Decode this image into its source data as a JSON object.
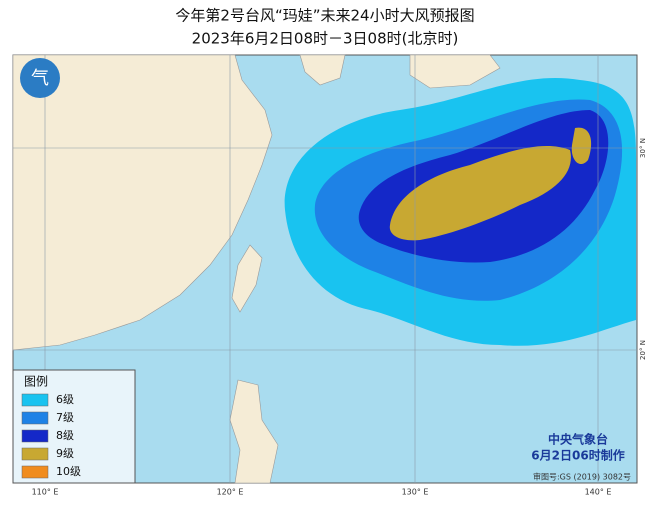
{
  "header": {
    "title": "今年第2号台风“玛娃”未来24小时大风预报图",
    "subtitle": "2023年6月2日08时－3日08时(北京时)"
  },
  "legend": {
    "title": "图例",
    "items": [
      {
        "label": "6级",
        "color": "#19c3f0"
      },
      {
        "label": "7级",
        "color": "#1e82e6"
      },
      {
        "label": "8级",
        "color": "#1428c8"
      },
      {
        "label": "9级",
        "color": "#c8a832"
      },
      {
        "label": "10级",
        "color": "#f08c1e"
      }
    ]
  },
  "footer": {
    "agency": "中央气象台",
    "issued": "6月2日06时制作",
    "approval": "审图号:GS (2019) 3082号"
  },
  "axes": {
    "lon_labels": [
      "110° E",
      "120° E",
      "130° E",
      "140° E"
    ],
    "lat_labels": [
      "30° N",
      "20° N"
    ]
  }
}
